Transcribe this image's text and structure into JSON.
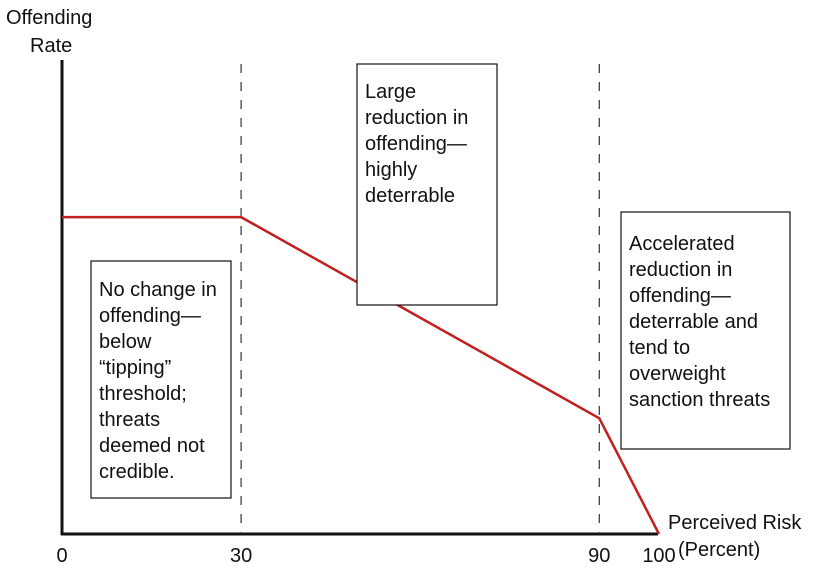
{
  "chart_data": {
    "type": "line",
    "title": "",
    "ylabel": [
      "Offending",
      "Rate"
    ],
    "xlabel": [
      "Perceived Risk",
      "(Percent)"
    ],
    "x_ticks": [
      "0",
      "30",
      "90",
      "100"
    ],
    "xlim": [
      0,
      100
    ],
    "ylim": [
      0,
      10
    ],
    "grid": false,
    "reference_lines_x": [
      30,
      90
    ],
    "series": [
      {
        "color": "#c0201e",
        "x": [
          0,
          30,
          90,
          100
        ],
        "y": [
          6.3,
          6.3,
          2.3,
          0
        ]
      }
    ],
    "annotations": [
      {
        "id": "no-change",
        "lines": [
          "No change in",
          "offending—",
          "below",
          "“tipping”",
          "threshold;",
          "threats",
          "deemed not",
          "credible."
        ]
      },
      {
        "id": "large-reduction",
        "lines": [
          "Large",
          "reduction in",
          "offending—",
          "highly",
          "deterrable"
        ]
      },
      {
        "id": "accelerated",
        "lines": [
          "Accelerated",
          "reduction in",
          "offending—",
          "deterrable and",
          "tend to",
          "overweight",
          "sanction threats"
        ]
      }
    ]
  }
}
